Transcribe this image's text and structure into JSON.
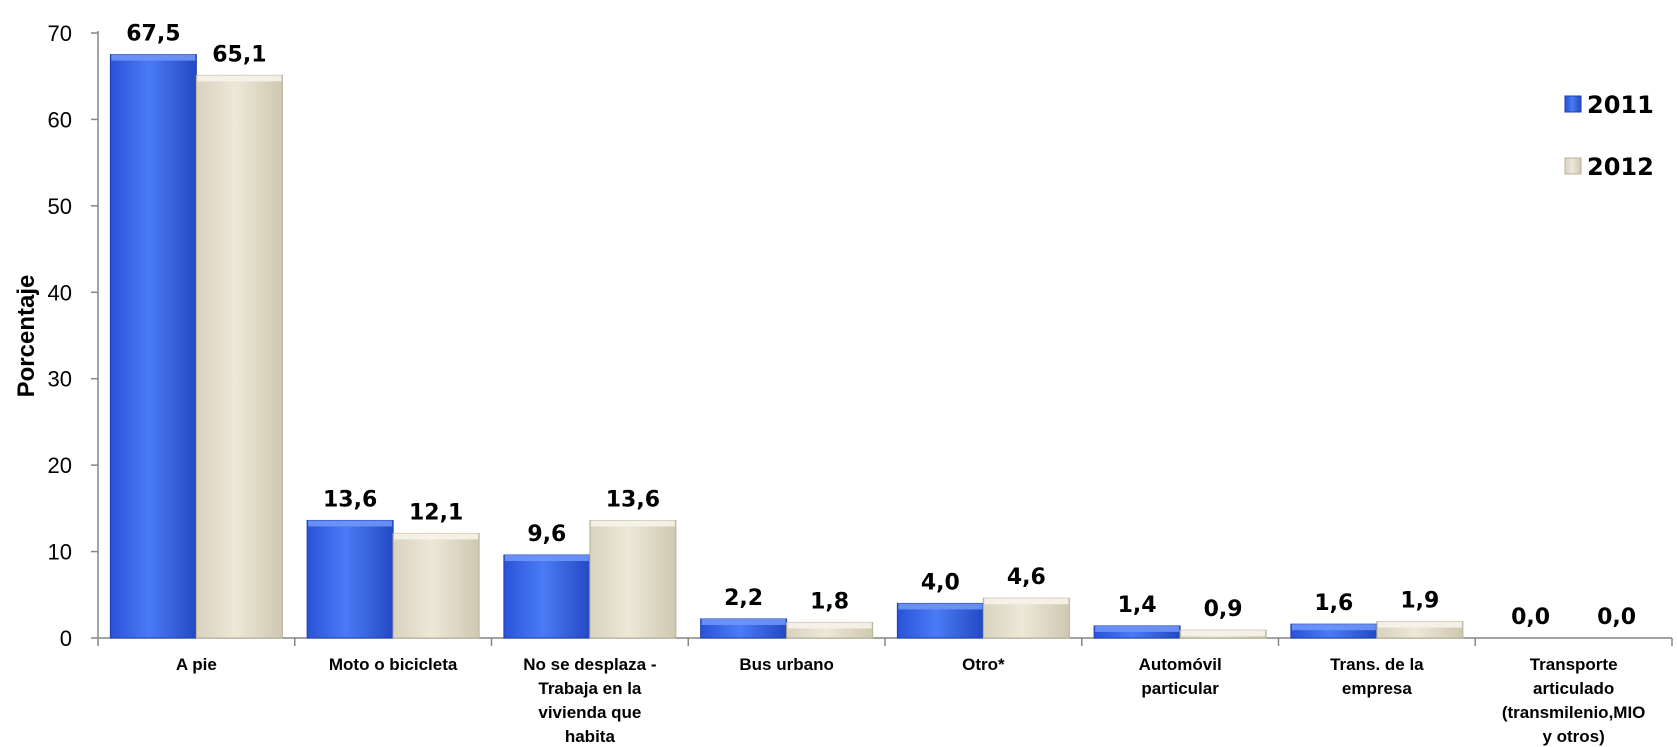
{
  "chart_data": {
    "type": "bar",
    "ylabel": "Porcentaje",
    "xlabel": "",
    "ylim": [
      0,
      70
    ],
    "yticks": [
      0,
      10,
      20,
      30,
      40,
      50,
      60,
      70
    ],
    "grid": false,
    "legend_position": "top-right",
    "categories": [
      [
        "A pie"
      ],
      [
        "Moto o bicicleta"
      ],
      [
        "No se desplaza -",
        "Trabaja en la",
        "vivienda que",
        "habita"
      ],
      [
        "Bus urbano"
      ],
      [
        "Otro*"
      ],
      [
        "Automóvil",
        "particular"
      ],
      [
        "Trans. de la",
        "empresa"
      ],
      [
        "Transporte",
        "articulado",
        "(transmilenio,MIO",
        "y otros)"
      ]
    ],
    "series": [
      {
        "name": "2011",
        "color": "#3a66e6",
        "values": [
          67.5,
          13.6,
          9.6,
          2.2,
          4.0,
          1.4,
          1.6,
          0.0
        ],
        "value_labels": [
          "67,5",
          "13,6",
          "9,6",
          "2,2",
          "4,0",
          "1,4",
          "1,6",
          "0,0"
        ]
      },
      {
        "name": "2012",
        "color": "#e6e1cf",
        "values": [
          65.1,
          12.1,
          13.6,
          1.8,
          4.6,
          0.9,
          1.9,
          0.0
        ],
        "value_labels": [
          "65,1",
          "12,1",
          "13,6",
          "1,8",
          "4,6",
          "0,9",
          "1,9",
          "0,0"
        ]
      }
    ]
  }
}
